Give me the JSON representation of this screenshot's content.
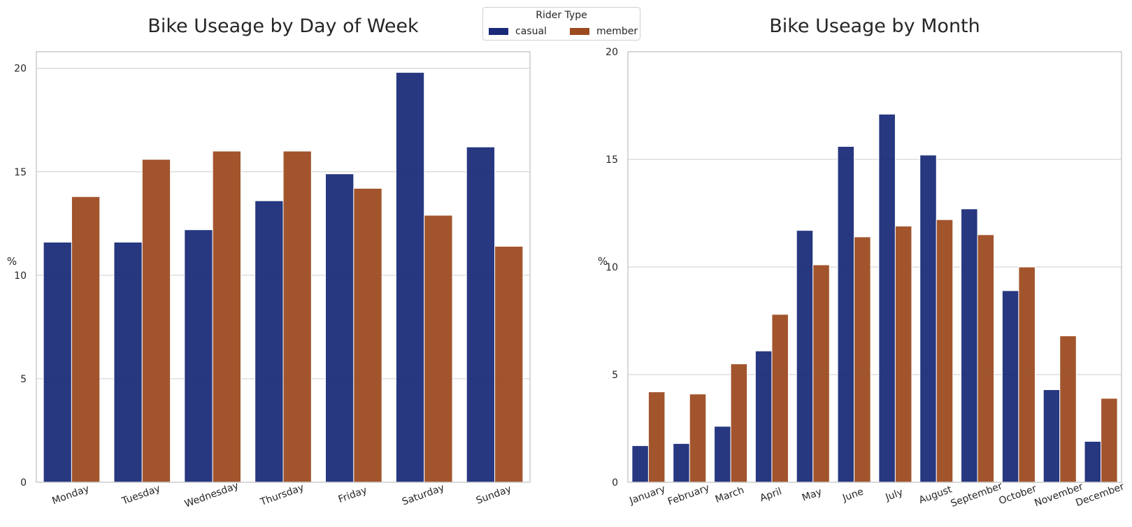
{
  "legend": {
    "title": "Rider Type",
    "entries": [
      {
        "name": "casual",
        "color": "#1a2a78"
      },
      {
        "name": "member",
        "color": "#9c4a20"
      }
    ]
  },
  "chart_data": [
    {
      "type": "bar",
      "title": "Bike Useage by Day of Week",
      "xlabel": "",
      "ylabel": "%",
      "ylim": [
        0,
        20.8
      ],
      "yticks": [
        0,
        5,
        10,
        15,
        20
      ],
      "grid": true,
      "categories": [
        "Monday",
        "Tuesday",
        "Wednesday",
        "Thursday",
        "Friday",
        "Saturday",
        "Sunday"
      ],
      "series": [
        {
          "name": "casual",
          "color": "#1a2a78",
          "values": [
            11.6,
            11.6,
            12.2,
            13.6,
            14.9,
            19.8,
            16.2
          ]
        },
        {
          "name": "member",
          "color": "#9c4a20",
          "values": [
            13.8,
            15.6,
            16.0,
            16.0,
            14.2,
            12.9,
            11.4
          ]
        }
      ]
    },
    {
      "type": "bar",
      "title": "Bike Useage by Month",
      "xlabel": "",
      "ylabel": "%",
      "ylim": [
        0,
        20
      ],
      "yticks": [
        0,
        5,
        10,
        15,
        20
      ],
      "grid": true,
      "categories": [
        "January",
        "February",
        "March",
        "April",
        "May",
        "June",
        "July",
        "August",
        "September",
        "October",
        "November",
        "December"
      ],
      "series": [
        {
          "name": "casual",
          "color": "#1a2a78",
          "values": [
            1.7,
            1.8,
            2.6,
            6.1,
            11.7,
            15.6,
            17.1,
            15.2,
            12.7,
            8.9,
            4.3,
            1.9
          ]
        },
        {
          "name": "member",
          "color": "#9c4a20",
          "values": [
            4.2,
            4.1,
            5.5,
            7.8,
            10.1,
            11.4,
            11.9,
            12.2,
            11.5,
            10.0,
            6.8,
            3.9
          ]
        }
      ]
    }
  ]
}
